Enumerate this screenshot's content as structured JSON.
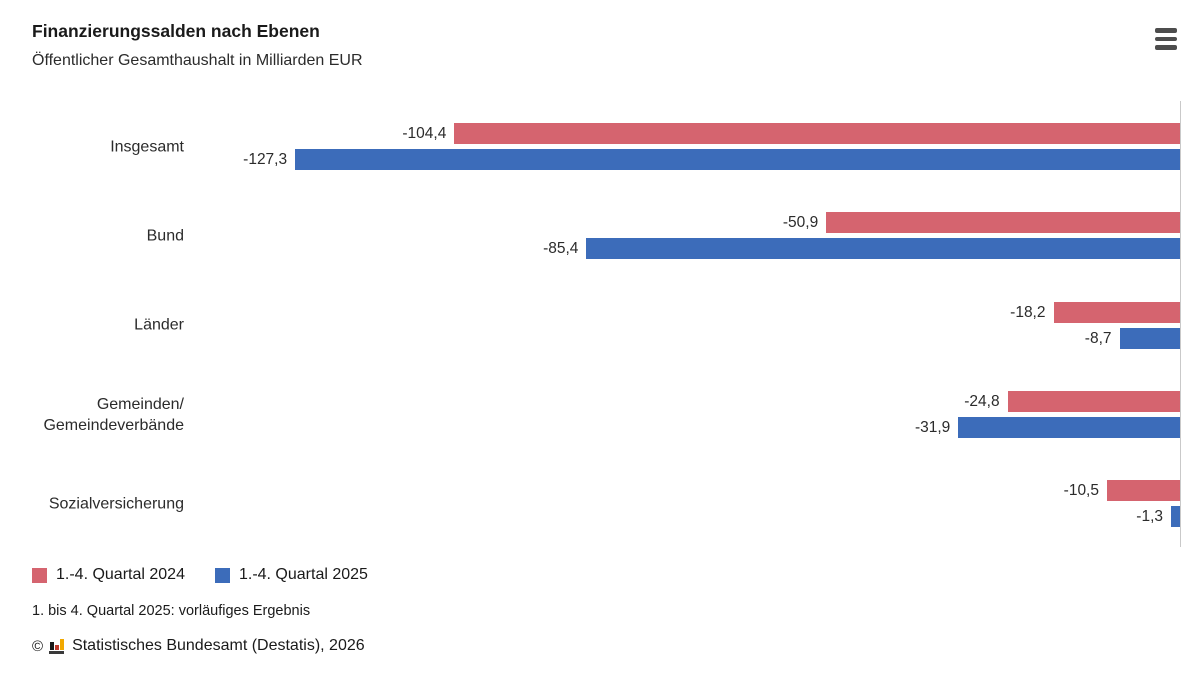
{
  "header": {
    "title": "Finanzierungssalden nach Ebenen",
    "subtitle": "Öffentlicher Gesamthaushalt in Milliarden EUR"
  },
  "chart_data": {
    "type": "bar",
    "orientation": "horizontal",
    "title": "Finanzierungssalden nach Ebenen",
    "subtitle": "Öffentlicher Gesamthaushalt in Milliarden EUR",
    "unit": "Milliarden EUR",
    "categories": [
      "Insgesamt",
      "Bund",
      "Länder",
      "Gemeinden/\nGemeindeverbände",
      "Sozialversicherung"
    ],
    "series": [
      {
        "name": "1.-4. Quartal 2024",
        "color": "#d5646f",
        "values": [
          -104.4,
          -50.9,
          -18.2,
          -24.8,
          -10.5
        ],
        "value_labels": [
          "-104,4",
          "-50,9",
          "-18,2",
          "-24,8",
          "-10,5"
        ]
      },
      {
        "name": "1.-4. Quartal 2025",
        "color": "#3c6cba",
        "values": [
          -127.3,
          -85.4,
          -8.7,
          -31.9,
          -1.3
        ],
        "value_labels": [
          "-127,3",
          "-85,4",
          "-8,7",
          "-31,9",
          "-1,3"
        ]
      }
    ],
    "xlim": [
      -143,
      0
    ],
    "grid": false,
    "legend_position": "bottom",
    "axis_line_color": "#c9c9c9"
  },
  "footer": {
    "footnote": "1. bis 4. Quartal 2025: vorläufiges Ergebnis",
    "copyright_symbol": "©",
    "source": "Statistisches Bundesamt (Destatis), 2026"
  }
}
